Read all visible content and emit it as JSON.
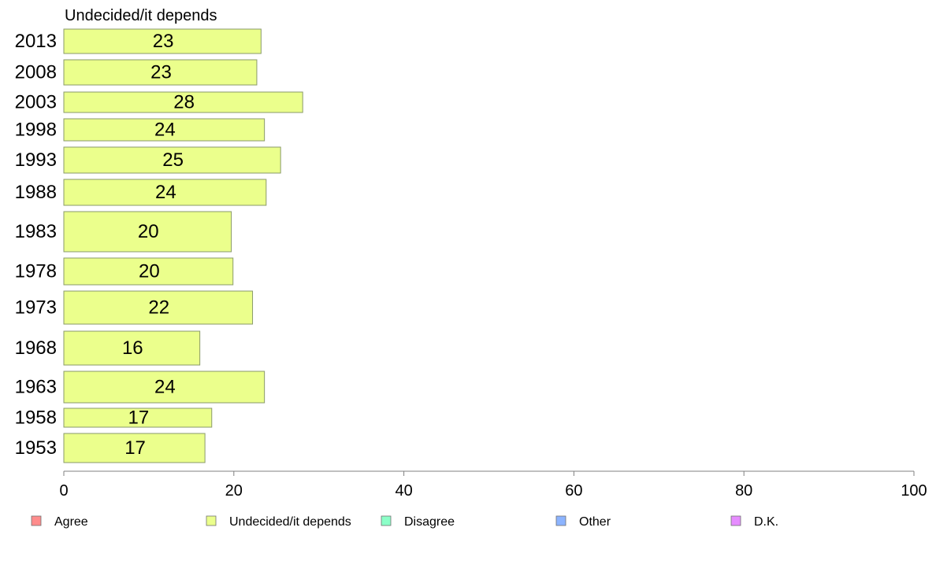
{
  "chart_data": {
    "type": "bar",
    "orientation": "horizontal",
    "title": "Undecided/it depends",
    "categories": [
      "2013",
      "2008",
      "2003",
      "1998",
      "1993",
      "1988",
      "1983",
      "1978",
      "1973",
      "1968",
      "1963",
      "1958",
      "1953"
    ],
    "series": [
      {
        "name": "Undecided/it depends",
        "color": "#ebff8c",
        "values": [
          23.2,
          22.7,
          28.1,
          23.6,
          25.5,
          23.8,
          19.7,
          19.9,
          22.2,
          16.0,
          23.6,
          17.4,
          16.6
        ],
        "labels": [
          "23",
          "23",
          "28",
          "24",
          "25",
          "24",
          "20",
          "20",
          "22",
          "16",
          "24",
          "17",
          "17"
        ]
      }
    ],
    "xlim": [
      0,
      100
    ],
    "xticks": [
      "0",
      "20",
      "40",
      "60",
      "80",
      "100"
    ],
    "grid": false,
    "legend": {
      "placement": "bottom",
      "items": [
        {
          "label": "Agree",
          "color": "#ff8c8c"
        },
        {
          "label": "Undecided/it depends",
          "color": "#ebff8c"
        },
        {
          "label": "Disagree",
          "color": "#8cffc8"
        },
        {
          "label": "Other",
          "color": "#8cb4ff"
        },
        {
          "label": "D.K.",
          "color": "#e68cff"
        }
      ]
    }
  }
}
